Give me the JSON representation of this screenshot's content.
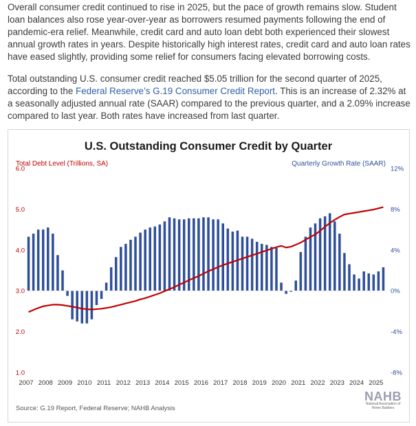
{
  "article": {
    "paragraph1": "Overall consumer credit continued to rise in 2025, but the pace of growth remains slow. Student loan balances also rose year-over-year as borrowers resumed payments following the end of pandemic-era relief. Meanwhile, credit card and auto loan debt both experienced their slowest annual growth rates in years. Despite historically high interest rates, credit card and auto loan rates have eased slightly, providing some relief for consumers facing elevated borrowing costs.",
    "paragraph2_before": "Total outstanding U.S. consumer credit reached $5.05 trillion for the second quarter of 2025, according to the ",
    "paragraph2_link": "Federal Reserve’s G.19 Consumer Credit Report",
    "paragraph2_after": ". This is an increase of 2.32% at a seasonally adjusted annual rate (SAAR) compared to the previous quarter, and a 2.09% increase compared to last year. Both rates have increased from last quarter."
  },
  "colors": {
    "line": "#c00000",
    "bars": "#2f4f9a",
    "left_axis": "#c00000",
    "right_axis": "#2f4f9a",
    "link": "#2f5fa5"
  },
  "logo": {
    "word": "NAHB",
    "subtitle": "National Association of Home Builders"
  },
  "chart_data": {
    "type": "bar+line",
    "title": "U.S. Outstanding Consumer Credit by Quarter",
    "left_axis_label": "Total Debt Level (Trillions, SA)",
    "right_axis_label": "Quarterly Growth Rate (SAAR)",
    "left_ticks": [
      "1.0",
      "2.0",
      "3.0",
      "4.0",
      "5.0",
      "6.0"
    ],
    "right_ticks": [
      "-8%",
      "-4%",
      "0%",
      "4%",
      "8%",
      "12%"
    ],
    "ylim_left": [
      1.0,
      6.0
    ],
    "ylim_right": [
      -8,
      12
    ],
    "x_ticks": [
      "2007",
      "2008",
      "2009",
      "2010",
      "2011",
      "2012",
      "2013",
      "2014",
      "2015",
      "2016",
      "2017",
      "2018",
      "2019",
      "2020",
      "2021",
      "2022",
      "2023",
      "2024",
      "2025"
    ],
    "x_start": 2007.0,
    "x_end": 2025.5,
    "quarters": [
      "2007Q1",
      "2007Q2",
      "2007Q3",
      "2007Q4",
      "2008Q1",
      "2008Q2",
      "2008Q3",
      "2008Q4",
      "2009Q1",
      "2009Q2",
      "2009Q3",
      "2009Q4",
      "2010Q1",
      "2010Q2",
      "2010Q3",
      "2010Q4",
      "2011Q1",
      "2011Q2",
      "2011Q3",
      "2011Q4",
      "2012Q1",
      "2012Q2",
      "2012Q3",
      "2012Q4",
      "2013Q1",
      "2013Q2",
      "2013Q3",
      "2013Q4",
      "2014Q1",
      "2014Q2",
      "2014Q3",
      "2014Q4",
      "2015Q1",
      "2015Q2",
      "2015Q3",
      "2015Q4",
      "2016Q1",
      "2016Q2",
      "2016Q3",
      "2016Q4",
      "2017Q1",
      "2017Q2",
      "2017Q3",
      "2017Q4",
      "2018Q1",
      "2018Q2",
      "2018Q3",
      "2018Q4",
      "2019Q1",
      "2019Q2",
      "2019Q3",
      "2019Q4",
      "2020Q1",
      "2020Q2",
      "2020Q3",
      "2020Q4",
      "2021Q1",
      "2021Q2",
      "2021Q3",
      "2021Q4",
      "2022Q1",
      "2022Q2",
      "2022Q3",
      "2022Q4",
      "2023Q1",
      "2023Q2",
      "2023Q3",
      "2023Q4",
      "2024Q1",
      "2024Q2",
      "2024Q3",
      "2024Q4",
      "2025Q1",
      "2025Q2"
    ],
    "growth_rate_pct": [
      5.3,
      5.6,
      6.0,
      6.0,
      6.2,
      5.6,
      3.5,
      2.0,
      -0.5,
      -2.8,
      -3.0,
      -3.2,
      -3.2,
      -2.8,
      -1.4,
      -0.8,
      0.8,
      2.3,
      3.3,
      4.3,
      4.6,
      5.0,
      5.3,
      5.7,
      6.0,
      6.2,
      6.3,
      6.5,
      6.8,
      7.2,
      7.1,
      7.0,
      7.0,
      7.1,
      7.1,
      7.1,
      7.2,
      7.2,
      7.0,
      7.0,
      6.6,
      6.1,
      5.8,
      5.9,
      5.3,
      5.3,
      5.1,
      4.8,
      4.6,
      4.5,
      4.3,
      4.2,
      0.8,
      -0.3,
      -0.1,
      1.0,
      3.8,
      5.3,
      6.2,
      6.6,
      7.1,
      7.3,
      7.6,
      6.8,
      5.6,
      3.7,
      2.6,
      1.6,
      1.2,
      1.9,
      1.7,
      1.6,
      1.9,
      2.3
    ],
    "debt_level_trillions": [
      2.48,
      2.53,
      2.58,
      2.62,
      2.64,
      2.66,
      2.66,
      2.65,
      2.63,
      2.61,
      2.59,
      2.56,
      2.55,
      2.54,
      2.55,
      2.56,
      2.58,
      2.6,
      2.63,
      2.66,
      2.69,
      2.72,
      2.75,
      2.79,
      2.82,
      2.86,
      2.9,
      2.94,
      2.99,
      3.04,
      3.09,
      3.15,
      3.2,
      3.26,
      3.31,
      3.36,
      3.42,
      3.48,
      3.53,
      3.58,
      3.63,
      3.67,
      3.71,
      3.75,
      3.79,
      3.83,
      3.87,
      3.91,
      3.95,
      3.99,
      4.03,
      4.07,
      4.1,
      4.06,
      4.08,
      4.13,
      4.18,
      4.25,
      4.32,
      4.38,
      4.47,
      4.57,
      4.66,
      4.74,
      4.81,
      4.87,
      4.89,
      4.91,
      4.93,
      4.95,
      4.97,
      4.99,
      5.02,
      5.05
    ],
    "source": "Source: G.19 Report, Federal Reserve; NAHB Analysis"
  }
}
